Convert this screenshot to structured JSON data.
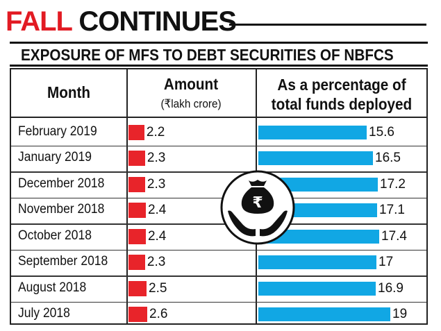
{
  "headline": {
    "word1": "FALL",
    "word2": "CONTINUES"
  },
  "subtitle": "EXPOSURE OF  MFS TO DEBT SECURITIES OF NBFCS",
  "chart_data": {
    "type": "table",
    "title": "FALL CONTINUES",
    "subtitle": "EXPOSURE OF  MFS TO DEBT SECURITIES OF NBFCS",
    "columns": {
      "month": "Month",
      "amount": "Amount",
      "amount_unit": "(₹lakh crore)",
      "percentage_line1": "As a percentage of",
      "percentage_line2": "total funds deployed"
    },
    "rows": [
      {
        "month": "February 2019",
        "amount": "2.2",
        "percentage": "15.6"
      },
      {
        "month": "January 2019",
        "amount": "2.3",
        "percentage": "16.5"
      },
      {
        "month": "December 2018",
        "amount": "2.3",
        "percentage": "17.2"
      },
      {
        "month": "November 2018",
        "amount": "2.4",
        "percentage": "17.1"
      },
      {
        "month": "October 2018",
        "amount": "2.4",
        "percentage": "17.4"
      },
      {
        "month": "September 2018",
        "amount": "2.3",
        "percentage": "17"
      },
      {
        "month": "August 2018",
        "amount": "2.5",
        "percentage": "16.9"
      },
      {
        "month": "July 2018",
        "amount": "2.6",
        "percentage": "19"
      }
    ],
    "colors": {
      "amount_bar": "#e8242a",
      "percentage_bar": "#11a7e4"
    }
  },
  "icon": "money-bag-in-hands-icon"
}
